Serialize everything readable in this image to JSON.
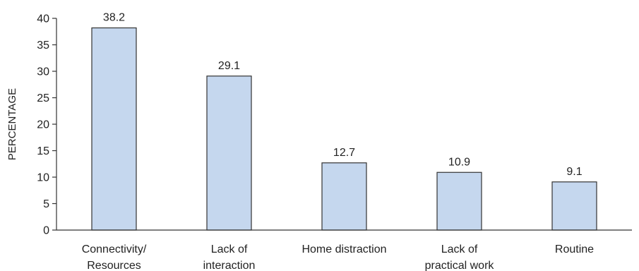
{
  "chart_data": {
    "type": "bar",
    "categories": [
      [
        "Connectivity/",
        "Resources"
      ],
      [
        "Lack of",
        "interaction"
      ],
      [
        "Home distraction"
      ],
      [
        "Lack of",
        "practical work"
      ],
      [
        "Routine"
      ]
    ],
    "values": [
      38.2,
      29.1,
      12.7,
      10.9,
      9.1
    ],
    "value_labels": [
      "38.2",
      "29.1",
      "12.7",
      "10.9",
      "9.1"
    ],
    "title": "",
    "xlabel": "",
    "ylabel": "PERCENTAGE",
    "ylim": [
      0,
      40
    ],
    "yticks": [
      0,
      5,
      10,
      15,
      20,
      25,
      30,
      35,
      40
    ],
    "grid": false,
    "colors": {
      "bar_fill": "#c5d7ee",
      "bar_stroke": "#333333",
      "axis": "#333333"
    }
  }
}
